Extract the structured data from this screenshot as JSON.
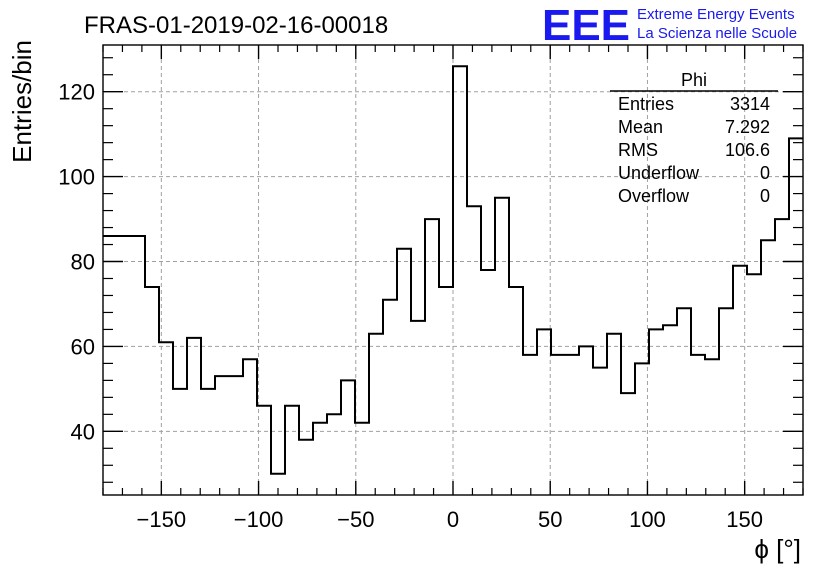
{
  "header": {
    "run_title": "FRAS-01-2019-02-16-00018",
    "logo_text": "EEE",
    "logo_line1": "Extreme Energy Events",
    "logo_line2": "La Scienza nelle Scuole",
    "logo_color": "#1a1aee"
  },
  "stats_box": {
    "title": "Phi",
    "rows": [
      {
        "label": "Entries",
        "value": "3314"
      },
      {
        "label": "Mean",
        "value": "7.292"
      },
      {
        "label": "RMS",
        "value": "106.6"
      },
      {
        "label": "Underflow",
        "value": "0"
      },
      {
        "label": "Overflow",
        "value": "0"
      }
    ]
  },
  "chart_data": {
    "type": "histogram",
    "ylabel": "Entries/bin",
    "xlabel": "ϕ [°]",
    "xlim": [
      -180,
      180
    ],
    "ylim": [
      25,
      131
    ],
    "bin_width": 7.2,
    "grid": true,
    "x_ticks": [
      -150,
      -100,
      -50,
      0,
      50,
      100,
      150
    ],
    "x_tick_labels": [
      "−150",
      "−100",
      "−50",
      "0",
      "50",
      "100",
      "150"
    ],
    "y_ticks": [
      40,
      60,
      80,
      100,
      120
    ],
    "y_tick_labels": [
      "40",
      "60",
      "80",
      "100",
      "120"
    ],
    "values": [
      86,
      86,
      86,
      74,
      61,
      50,
      62,
      50,
      53,
      53,
      57,
      46,
      30,
      46,
      38,
      42,
      44,
      52,
      42,
      63,
      71,
      83,
      66,
      90,
      74,
      126,
      93,
      78,
      95,
      74,
      58,
      64,
      58,
      58,
      60,
      55,
      63,
      49,
      56,
      64,
      65,
      69,
      58,
      57,
      69,
      79,
      77,
      85,
      90,
      109
    ]
  }
}
